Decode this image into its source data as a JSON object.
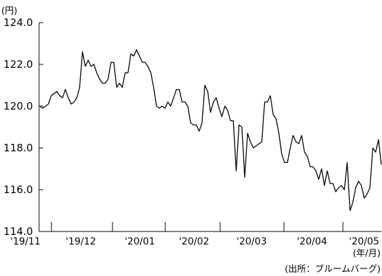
{
  "chart_data": {
    "type": "line",
    "title": "",
    "xlabel": "(年/月)",
    "ylabel": "(円)",
    "source": "(出所：ブルームバーグ)",
    "ylim": [
      114.0,
      124.0
    ],
    "yticks": [
      124.0,
      122.0,
      120.0,
      118.0,
      116.0,
      114.0
    ],
    "ytick_labels": [
      "124.0",
      "122.0",
      "120.0",
      "118.0",
      "116.0",
      "114.0"
    ],
    "xtick_labels": [
      "'19/11",
      "'19/12",
      "'20/01",
      "'20/02",
      "'20/03",
      "'20/04",
      "'20/05"
    ],
    "grid": false,
    "series": [
      {
        "values": [
          120.0,
          119.9,
          120.0,
          120.1,
          120.5,
          120.6,
          120.7,
          120.5,
          120.4,
          120.8,
          120.4,
          120.1,
          120.2,
          120.4,
          120.9,
          122.6,
          121.9,
          122.2,
          121.9,
          122.0,
          121.6,
          121.3,
          121.1,
          121.1,
          121.3,
          122.1,
          122.1,
          120.9,
          121.1,
          120.9,
          121.6,
          121.6,
          122.5,
          122.4,
          122.7,
          122.4,
          122.1,
          122.1,
          121.9,
          121.6,
          120.9,
          120.0,
          119.9,
          120.0,
          119.9,
          120.2,
          120.0,
          120.4,
          120.8,
          120.8,
          120.2,
          120.2,
          120.0,
          119.2,
          119.1,
          119.1,
          118.8,
          119.2,
          121.0,
          120.7,
          119.7,
          120.2,
          120.4,
          119.9,
          119.5,
          120.0,
          119.8,
          119.3,
          119.3,
          116.9,
          119.1,
          119.0,
          116.6,
          118.7,
          118.3,
          118.0,
          118.1,
          118.2,
          118.3,
          120.2,
          120.2,
          120.5,
          119.6,
          119.4,
          118.7,
          117.7,
          117.3,
          117.3,
          118.0,
          118.6,
          118.3,
          118.2,
          118.6,
          117.8,
          117.6,
          117.1,
          117.1,
          116.9,
          116.5,
          117.0,
          116.2,
          116.9,
          116.3,
          116.3,
          115.9,
          116.1,
          116.2,
          116.0,
          117.3,
          115.0,
          115.4,
          116.1,
          116.4,
          116.2,
          115.6,
          115.8,
          116.1,
          118.0,
          117.8,
          118.4,
          117.2
        ]
      }
    ]
  }
}
